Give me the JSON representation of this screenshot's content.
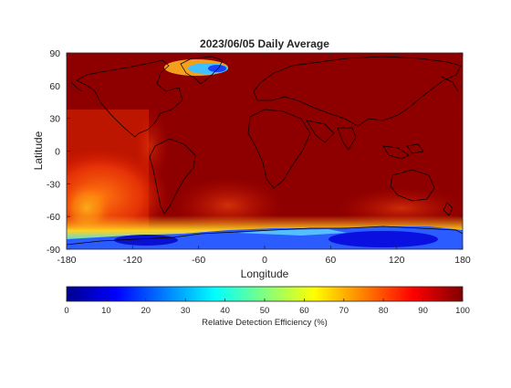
{
  "title": "2023/06/05 Daily Average",
  "map": {
    "xlabel": "Longitude",
    "ylabel": "Latitude",
    "xlim": [
      -180,
      180
    ],
    "ylim": [
      -90,
      90
    ],
    "x_ticks": [
      "-180",
      "-120",
      "-60",
      "0",
      "60",
      "120",
      "180"
    ],
    "y_ticks": [
      "90",
      "60",
      "30",
      "0",
      "-30",
      "-60",
      "-90"
    ]
  },
  "colorbar": {
    "label": "Relative Detection Efficiency (%)",
    "range": [
      0,
      100
    ],
    "ticks": [
      "0",
      "10",
      "20",
      "30",
      "40",
      "50",
      "60",
      "70",
      "80",
      "90",
      "100"
    ],
    "colormap": "jet"
  },
  "colors": {
    "background_field": "#8b0000",
    "high": "#7f0000",
    "mid": "#ff4a00",
    "low": "#0033ff"
  }
}
